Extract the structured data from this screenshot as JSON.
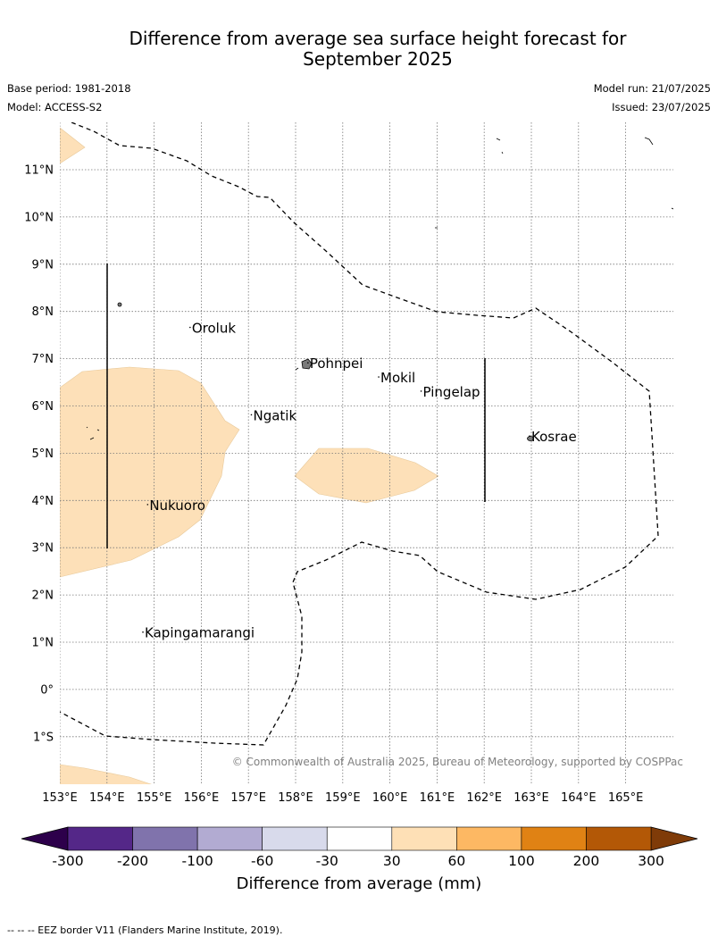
{
  "title_line1": "Difference from average sea surface height forecast for",
  "title_line2": "September 2025",
  "meta": {
    "base_period": "Base period: 1981-2018",
    "model": "Model: ACCESS-S2",
    "model_run": "Model run: 21/07/2025",
    "issued": "Issued: 23/07/2025"
  },
  "map": {
    "lon_labels": [
      "153°E",
      "154°E",
      "155°E",
      "156°E",
      "157°E",
      "158°E",
      "159°E",
      "160°E",
      "161°E",
      "162°E",
      "163°E",
      "164°E",
      "165°E"
    ],
    "lat_labels": [
      "11°N",
      "10°N",
      "9°N",
      "8°N",
      "7°N",
      "6°N",
      "5°N",
      "4°N",
      "3°N",
      "2°N",
      "1°N",
      "0°",
      "1°S"
    ],
    "places": [
      {
        "name": "Oroluk",
        "lon": 155.8,
        "lat": 7.55
      },
      {
        "name": "Pohnpei",
        "lon": 158.3,
        "lat": 6.8
      },
      {
        "name": "Mokil",
        "lon": 159.8,
        "lat": 6.5
      },
      {
        "name": "Pingelap",
        "lon": 160.7,
        "lat": 6.2
      },
      {
        "name": "Ngatik",
        "lon": 157.1,
        "lat": 5.7
      },
      {
        "name": "Kosrae",
        "lon": 163.0,
        "lat": 5.25
      },
      {
        "name": "Nukuoro",
        "lon": 154.9,
        "lat": 3.8
      },
      {
        "name": "Kapingamarangi",
        "lon": 154.8,
        "lat": 1.1
      }
    ],
    "anomaly_fill_color": "#fde0b8",
    "copyright": "© Commonwealth of Australia 2025, Bureau of Meteorology, supported by COSPPac"
  },
  "colorbar": {
    "tick_labels": [
      "-300",
      "-200",
      "-100",
      "-60",
      "-30",
      "30",
      "60",
      "100",
      "200",
      "300"
    ],
    "colors": [
      "#542788",
      "#8073ac",
      "#b2abd2",
      "#d8daeb",
      "#ffffff",
      "#fee0b6",
      "#fdb863",
      "#e08214",
      "#b35806"
    ],
    "under_color": "#2d004b",
    "over_color": "#7f3b08",
    "label": "Difference from average (mm)"
  },
  "footnote": "--  --  -- EEZ border V11 (Flanders Marine Institute, 2019)."
}
